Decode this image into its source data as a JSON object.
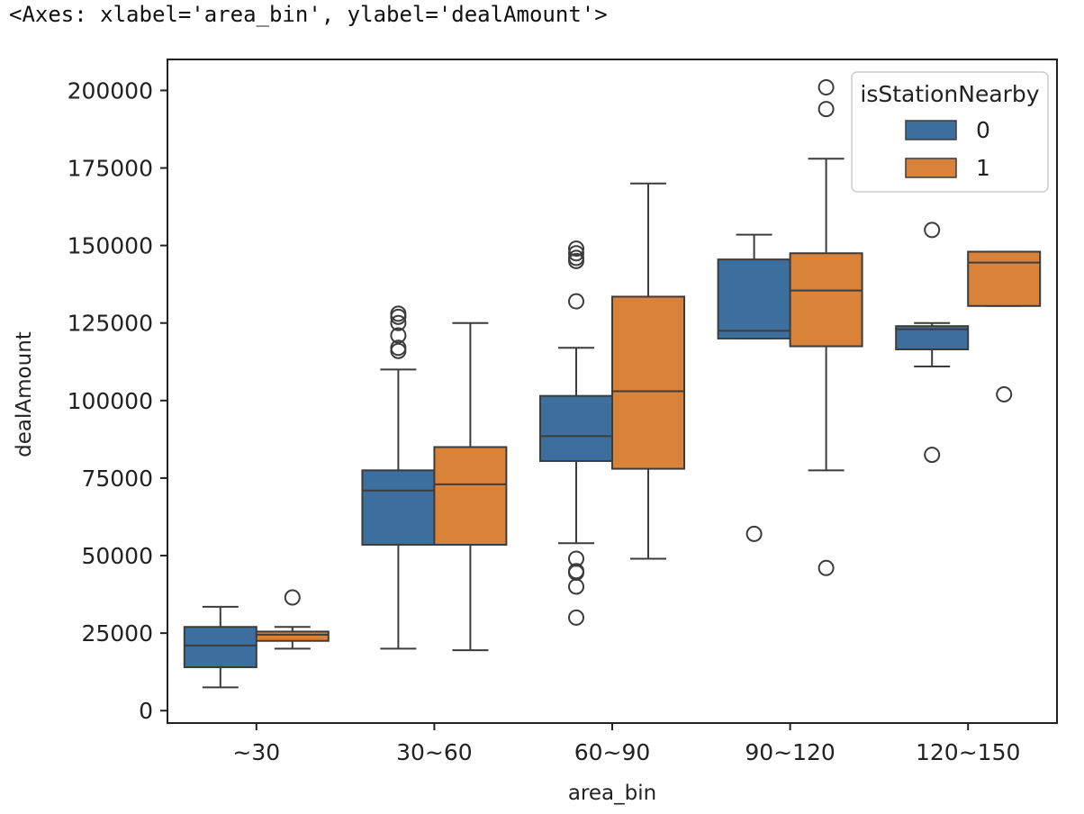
{
  "output_repr": "<Axes: xlabel='area_bin', ylabel='dealAmount'>",
  "colors": {
    "0": "#3d6f9e",
    "1": "#d8823a",
    "line": "#3c3c3c"
  },
  "chart_data": {
    "type": "boxplot",
    "xlabel": "area_bin",
    "ylabel": "dealAmount",
    "categories": [
      "~30",
      "30~60",
      "60~90",
      "90~120",
      "120~150"
    ],
    "ylim": [
      -4000,
      210000
    ],
    "yticks": [
      0,
      25000,
      50000,
      75000,
      100000,
      125000,
      150000,
      175000,
      200000
    ],
    "grid": false,
    "legend": {
      "title": "isStationNearby",
      "entries": [
        "0",
        "1"
      ],
      "placement": "top-right"
    },
    "series": [
      {
        "name": "0",
        "boxes": [
          {
            "whislo": 7500,
            "q1": 14000,
            "med": 21000,
            "q3": 27000,
            "whishi": 33500,
            "fliers": []
          },
          {
            "whislo": 20000,
            "q1": 53500,
            "med": 71000,
            "q3": 77500,
            "whishi": 110000,
            "fliers": [
              116000,
              117000,
              121000,
              125000,
              127000,
              128000
            ]
          },
          {
            "whislo": 54000,
            "q1": 80500,
            "med": 88500,
            "q3": 101500,
            "whishi": 117000,
            "fliers": [
              30000,
              40000,
              44500,
              45000,
              49000,
              132000,
              145000,
              146000,
              147500,
              149000
            ]
          },
          {
            "whislo": 120000,
            "q1": 120000,
            "med": 122500,
            "q3": 145500,
            "whishi": 153500,
            "fliers": [
              57000
            ]
          },
          {
            "whislo": 111000,
            "q1": 116500,
            "med": 123000,
            "q3": 124000,
            "whishi": 125000,
            "fliers": [
              82500,
              155000
            ]
          }
        ]
      },
      {
        "name": "1",
        "boxes": [
          {
            "whislo": 20000,
            "q1": 22500,
            "med": 24500,
            "q3": 25500,
            "whishi": 27000,
            "fliers": [
              36500
            ]
          },
          {
            "whislo": 19500,
            "q1": 53500,
            "med": 73000,
            "q3": 85000,
            "whishi": 125000,
            "fliers": []
          },
          {
            "whislo": 49000,
            "q1": 78000,
            "med": 103000,
            "q3": 133500,
            "whishi": 170000,
            "fliers": []
          },
          {
            "whislo": 77500,
            "q1": 117500,
            "med": 135500,
            "q3": 147500,
            "whishi": 178000,
            "fliers": [
              46000,
              194000,
              201000
            ]
          },
          {
            "whislo": 130500,
            "q1": 130500,
            "med": 144500,
            "q3": 148000,
            "whishi": 148000,
            "fliers": [
              102000
            ]
          }
        ]
      }
    ]
  }
}
